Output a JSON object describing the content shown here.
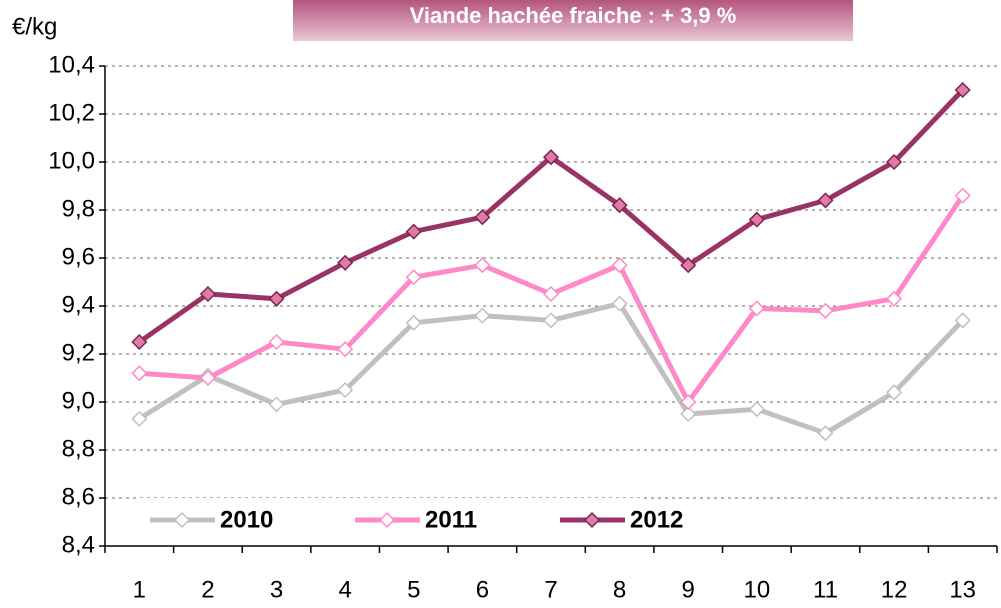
{
  "chart_data": {
    "type": "line",
    "title": "Viande hachée fraiche : + 3,9 %",
    "y_label": "€/kg",
    "categories": [
      "1",
      "2",
      "3",
      "4",
      "5",
      "6",
      "7",
      "8",
      "9",
      "10",
      "11",
      "12",
      "13"
    ],
    "series": [
      {
        "name": "2010",
        "color": "#c0c0c0",
        "marker_fill": "#ffffff",
        "values": [
          8.93,
          9.11,
          8.99,
          9.05,
          9.33,
          9.36,
          9.34,
          9.41,
          8.95,
          8.97,
          8.87,
          9.04,
          9.34
        ]
      },
      {
        "name": "2011",
        "color": "#ff88c8",
        "marker_fill": "#ffffff",
        "values": [
          9.12,
          9.1,
          9.25,
          9.22,
          9.52,
          9.57,
          9.45,
          9.57,
          9.0,
          9.39,
          9.38,
          9.43,
          9.86
        ]
      },
      {
        "name": "2012",
        "color": "#993366",
        "marker_fill": "#e07aa8",
        "values": [
          9.25,
          9.45,
          9.43,
          9.58,
          9.71,
          9.77,
          10.02,
          9.82,
          9.57,
          9.76,
          9.84,
          10.0,
          10.3
        ]
      }
    ],
    "ylim": [
      8.4,
      10.4
    ],
    "yticks": [
      {
        "value": 8.4,
        "label": "8,4"
      },
      {
        "value": 8.6,
        "label": "8,6"
      },
      {
        "value": 8.8,
        "label": "8,8"
      },
      {
        "value": 9.0,
        "label": "9,0"
      },
      {
        "value": 9.2,
        "label": "9,2"
      },
      {
        "value": 9.4,
        "label": "9,4"
      },
      {
        "value": 9.6,
        "label": "9,6"
      },
      {
        "value": 9.8,
        "label": "9,8"
      },
      {
        "value": 10.0,
        "label": "10,0"
      },
      {
        "value": 10.2,
        "label": "10,2"
      },
      {
        "value": 10.4,
        "label": "10,4"
      }
    ],
    "grid": true,
    "legend": "lower left"
  }
}
